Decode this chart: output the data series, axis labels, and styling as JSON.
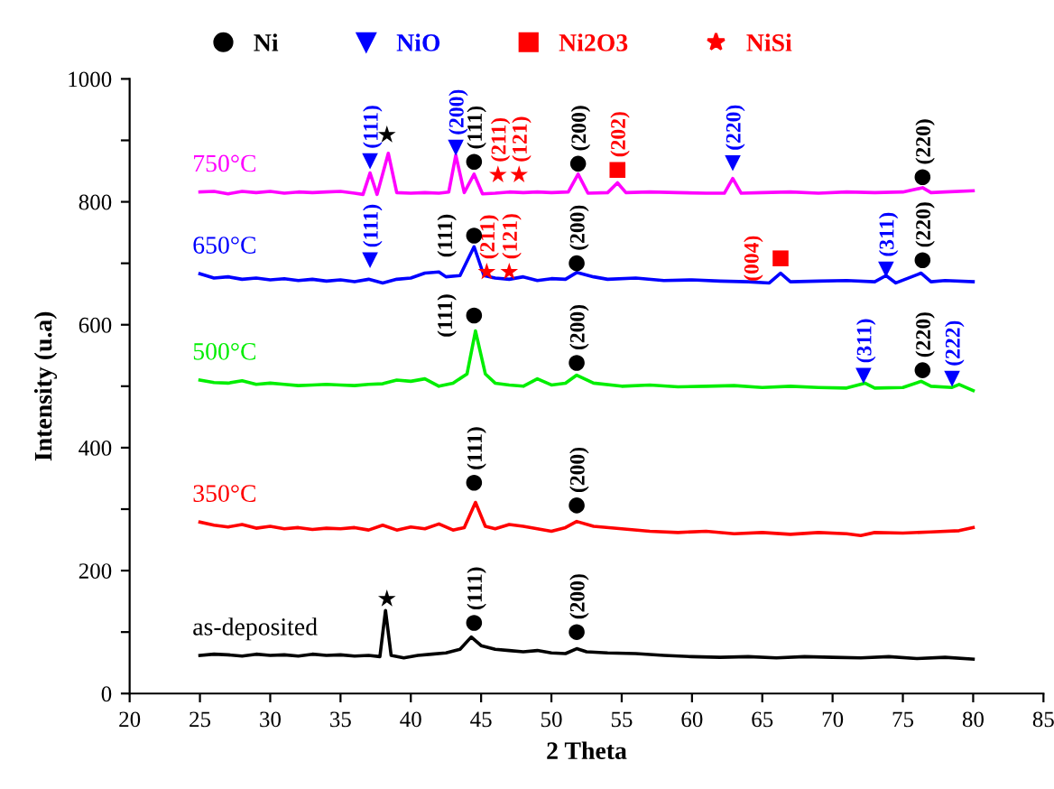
{
  "chart_data": {
    "type": "line",
    "xlabel": "2 Theta",
    "ylabel": "Intensity (u.a)",
    "xlim": [
      20,
      85
    ],
    "ylim": [
      0,
      1000
    ],
    "xticks": [
      20,
      25,
      30,
      35,
      40,
      45,
      50,
      55,
      60,
      65,
      70,
      75,
      80,
      85
    ],
    "yticks": [
      0,
      {
        "value": 100,
        "label": null
      },
      200,
      {
        "value": 300,
        "label": null
      },
      400,
      {
        "value": 500,
        "label": null
      },
      600,
      {
        "value": 700,
        "label": null
      },
      800,
      {
        "value": 900,
        "label": null
      },
      1000
    ],
    "grid": false,
    "legend": "top",
    "line_style": "solid",
    "series": [
      {
        "name": "as-deposited",
        "color": "#000000",
        "x": [
          25,
          26,
          27,
          28,
          29,
          30,
          31,
          32,
          33,
          34,
          35,
          36,
          37,
          37.8,
          38.2,
          38.6,
          39.5,
          40.5,
          41.5,
          42.5,
          43.5,
          44.3,
          45,
          46,
          47,
          48,
          49,
          50,
          51,
          51.8,
          52.5,
          54,
          56,
          58,
          60,
          62,
          64,
          66,
          68,
          70,
          72,
          74,
          76,
          78,
          80
        ],
        "values": [
          62,
          64,
          63,
          61,
          64,
          62,
          63,
          61,
          64,
          62,
          63,
          61,
          62,
          60,
          135,
          62,
          58,
          62,
          64,
          66,
          72,
          92,
          78,
          72,
          70,
          68,
          70,
          66,
          65,
          73,
          68,
          66,
          65,
          62,
          60,
          59,
          60,
          58,
          60,
          59,
          58,
          60,
          57,
          59,
          56
        ]
      },
      {
        "name": "350°C",
        "color": "#ff0000",
        "x": [
          25,
          26,
          27,
          28,
          29,
          30,
          31,
          32,
          33,
          34,
          35,
          36,
          37,
          38,
          39,
          40,
          41,
          42,
          43,
          43.8,
          44.6,
          45.3,
          46,
          47,
          48,
          49,
          50,
          51,
          51.8,
          53,
          55,
          57,
          59,
          61,
          63,
          65,
          67,
          69,
          71,
          72,
          73,
          75,
          77,
          79,
          80
        ],
        "values": [
          279,
          274,
          271,
          275,
          269,
          272,
          268,
          270,
          267,
          269,
          268,
          270,
          266,
          274,
          266,
          271,
          268,
          276,
          266,
          270,
          311,
          272,
          268,
          275,
          272,
          268,
          264,
          270,
          280,
          272,
          268,
          264,
          262,
          264,
          260,
          262,
          259,
          262,
          260,
          257,
          262,
          261,
          263,
          265,
          270
        ]
      },
      {
        "name": "500°C",
        "color": "#00ee00",
        "x": [
          25,
          26,
          27,
          28,
          29,
          30,
          31,
          32,
          33,
          34,
          35,
          36,
          37,
          38,
          39,
          40,
          41,
          42,
          43,
          44,
          44.6,
          45.3,
          46,
          47,
          48,
          49,
          50,
          51,
          51.8,
          53,
          55,
          57,
          59,
          61,
          63,
          65,
          67,
          69,
          71,
          72.3,
          73,
          75,
          76.3,
          77,
          78.5,
          79,
          80
        ],
        "values": [
          510,
          506,
          505,
          509,
          503,
          505,
          503,
          501,
          502,
          503,
          502,
          501,
          503,
          504,
          510,
          508,
          512,
          500,
          505,
          520,
          590,
          520,
          505,
          502,
          500,
          512,
          502,
          505,
          518,
          505,
          500,
          502,
          499,
          500,
          501,
          498,
          500,
          498,
          497,
          505,
          497,
          498,
          508,
          500,
          498,
          503,
          493
        ]
      },
      {
        "name": "650°C",
        "color": "#0000ff",
        "x": [
          25,
          26,
          27,
          28,
          29,
          30,
          31,
          32,
          33,
          34,
          35,
          36,
          37,
          38,
          39,
          40,
          41,
          42,
          42.5,
          43.5,
          44.5,
          45.2,
          46,
          47,
          48,
          49,
          50,
          51,
          51.8,
          53,
          54,
          56,
          58,
          60,
          62,
          64,
          65.5,
          66.3,
          67,
          69,
          71,
          73,
          73.8,
          74.5,
          76.3,
          77,
          78,
          80
        ],
        "values": [
          683,
          676,
          678,
          674,
          676,
          673,
          675,
          672,
          674,
          671,
          673,
          670,
          674,
          668,
          674,
          676,
          684,
          686,
          678,
          680,
          727,
          680,
          676,
          674,
          678,
          672,
          675,
          674,
          685,
          678,
          674,
          676,
          672,
          673,
          671,
          670,
          668,
          684,
          670,
          671,
          672,
          670,
          680,
          668,
          684,
          670,
          672,
          670
        ]
      },
      {
        "name": "750°C",
        "color": "#ff00ff",
        "x": [
          25,
          26,
          27,
          28,
          29,
          30,
          31,
          32,
          33,
          34,
          35,
          36,
          36.6,
          37.1,
          37.6,
          38.4,
          39,
          40,
          41,
          42,
          42.7,
          43.2,
          43.8,
          44.5,
          45.1,
          46,
          47,
          48,
          49,
          50,
          51.2,
          51.9,
          52.6,
          54,
          54.7,
          55.3,
          57,
          59,
          61,
          62.3,
          62.9,
          63.5,
          65,
          67,
          69,
          71,
          73,
          75,
          76.4,
          77,
          78,
          80
        ],
        "values": [
          816,
          817,
          813,
          817,
          815,
          817,
          814,
          816,
          815,
          816,
          817,
          814,
          812,
          847,
          812,
          879,
          815,
          814,
          815,
          814,
          816,
          876,
          815,
          845,
          813,
          814,
          816,
          815,
          816,
          815,
          816,
          845,
          814,
          815,
          831,
          815,
          816,
          815,
          814,
          814,
          838,
          814,
          815,
          816,
          814,
          816,
          815,
          816,
          823,
          815,
          816,
          818
        ]
      },
      {
        "name": "Ni",
        "type": "scatter",
        "marker": "circle",
        "color": "#000000",
        "x": [
          44.5,
          51.8,
          44.5,
          51.8,
          44.5,
          51.8,
          76.4,
          44.5,
          51.8,
          76.4,
          44.5,
          51.9,
          76.4
        ],
        "values": [
          115,
          100,
          343,
          306,
          615,
          538,
          526,
          745,
          700,
          705,
          865,
          862,
          840
        ]
      },
      {
        "name": "NiO",
        "type": "scatter",
        "marker": "triangle",
        "color": "#0000ff",
        "x": [
          37.1,
          43.2,
          62.9,
          37.1,
          73.8,
          72.2,
          78.5
        ],
        "values": [
          866,
          888,
          863,
          705,
          690,
          517,
          512
        ]
      },
      {
        "name": "Ni2O3",
        "type": "scatter",
        "marker": "square",
        "color": "#ff0000",
        "x": [
          54.7,
          66.3
        ],
        "values": [
          852,
          708
        ]
      },
      {
        "name": "NiSi",
        "type": "scatter",
        "marker": "star",
        "color": "#ff0000",
        "x": [
          46.2,
          47.7,
          45.4,
          47.0
        ],
        "values": [
          844,
          844,
          686,
          686
        ]
      },
      {
        "type": "scatter",
        "marker": "star",
        "color": "#000000",
        "x": [
          38.3,
          38.3
        ],
        "values": [
          909,
          154
        ]
      }
    ],
    "annotations": [
      {
        "text": "(111)",
        "x": 44.5,
        "y": 115
      },
      {
        "text": "(200)",
        "x": 51.8,
        "y": 100
      },
      {
        "text": "(111)",
        "x": 44.5,
        "y": 343
      },
      {
        "text": "(200)",
        "x": 51.8,
        "y": 306
      },
      {
        "text": "(111)",
        "x": 44.5,
        "y": 615
      },
      {
        "text": "(200)",
        "x": 51.8,
        "y": 538
      },
      {
        "text": "(220)",
        "x": 76.4,
        "y": 526
      },
      {
        "text": "(111)",
        "x": 44.5,
        "y": 745
      },
      {
        "text": "(200)",
        "x": 51.8,
        "y": 700
      },
      {
        "text": "(220)",
        "x": 76.4,
        "y": 705
      },
      {
        "text": "(111)",
        "x": 44.5,
        "y": 865
      },
      {
        "text": "(200)",
        "x": 51.9,
        "y": 862
      },
      {
        "text": "(220)",
        "x": 76.4,
        "y": 840
      },
      {
        "text": "(111)",
        "x": 37.1,
        "y": 866
      },
      {
        "text": "(200)",
        "x": 43.2,
        "y": 888
      },
      {
        "text": "(220)",
        "x": 62.9,
        "y": 863
      },
      {
        "text": "(111)",
        "x": 37.1,
        "y": 705
      },
      {
        "text": "(311)",
        "x": 73.8,
        "y": 690
      },
      {
        "text": "(311)",
        "x": 72.2,
        "y": 517
      },
      {
        "text": "(222)",
        "x": 78.5,
        "y": 512
      },
      {
        "text": "(202)",
        "x": 54.7,
        "y": 852
      },
      {
        "text": "(004)",
        "x": 66.3,
        "y": 708
      },
      {
        "text": "(211)",
        "x": 46.2,
        "y": 844
      },
      {
        "text": "(121)",
        "x": 47.7,
        "y": 844
      },
      {
        "text": "(211)",
        "x": 45.4,
        "y": 686
      },
      {
        "text": "(121)",
        "x": 47.0,
        "y": 686
      }
    ]
  }
}
